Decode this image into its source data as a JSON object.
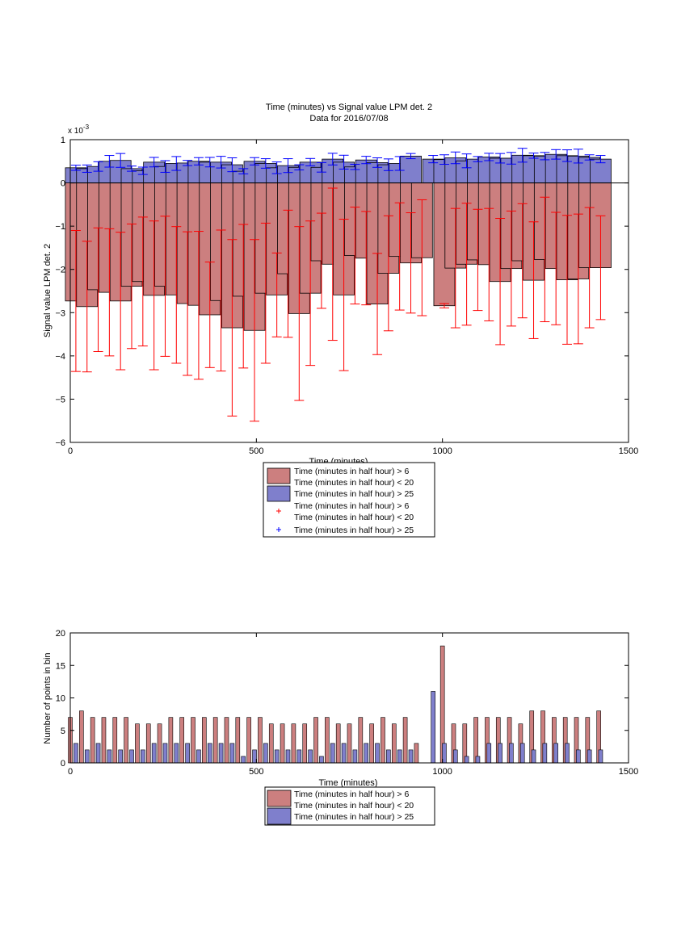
{
  "chart_data": [
    {
      "type": "bar",
      "title_line1": "Time (minutes) vs Signal value LPM det. 2",
      "title_line2": "Data for 2016/07/08",
      "xlabel": "Time (minutes)",
      "ylabel": "Signal value LPM det. 2",
      "exponent_label": "x 10",
      "exponent_power": "-3",
      "xlim": [
        0,
        1500
      ],
      "ylim": [
        -6,
        1
      ],
      "xticks": [
        0,
        500,
        1000,
        1500
      ],
      "yticks": [
        1,
        0,
        -1,
        -2,
        -3,
        -4,
        -5,
        -6
      ],
      "xtick_labels": [
        "0",
        "500",
        "1000",
        "1500"
      ],
      "ytick_labels": [
        "1",
        "0",
        "−1",
        "−2",
        "−3",
        "−4",
        "−5",
        "−6"
      ],
      "grid": false,
      "legend_position": "below",
      "colors": {
        "red_bar": "#cc7f7f",
        "blue_bar": "#7f7fcc",
        "red_err": "#ff0000",
        "blue_err": "#0000ff"
      },
      "legend": [
        {
          "kind": "bar",
          "color": "red",
          "line1": "Time (minutes in half hour) > 6",
          "line2": "Time (minutes in half hour) < 20"
        },
        {
          "kind": "bar",
          "color": "blue",
          "line1": "Time (minutes in half hour) > 25",
          "line2": ""
        },
        {
          "kind": "marker",
          "color": "red",
          "line1": "Time (minutes in half hour) > 6",
          "line2": "Time (minutes in half hour) < 20"
        },
        {
          "kind": "marker",
          "color": "blue",
          "line1": "Time (minutes in half hour) > 25",
          "line2": ""
        }
      ],
      "red_series": {
        "x": [
          15,
          45,
          75,
          105,
          135,
          165,
          195,
          225,
          255,
          285,
          315,
          345,
          375,
          405,
          435,
          465,
          495,
          525,
          555,
          585,
          615,
          645,
          675,
          705,
          735,
          765,
          795,
          825,
          855,
          885,
          915,
          945,
          1005,
          1035,
          1065,
          1095,
          1125,
          1155,
          1185,
          1215,
          1245,
          1275,
          1305,
          1335,
          1365,
          1395,
          1425
        ],
        "values": [
          -2.73,
          -2.86,
          -2.47,
          -2.53,
          -2.73,
          -2.39,
          -2.28,
          -2.6,
          -2.39,
          -2.59,
          -2.79,
          -2.83,
          -3.05,
          -2.72,
          -3.35,
          -2.62,
          -3.41,
          -2.55,
          -2.59,
          -2.1,
          -3.02,
          -2.55,
          -1.8,
          -1.88,
          -2.59,
          -1.68,
          -1.74,
          -2.8,
          -2.09,
          -1.7,
          -1.85,
          -1.73,
          -2.84,
          -1.97,
          -1.88,
          -1.78,
          -1.89,
          -2.28,
          -1.98,
          -1.8,
          -2.25,
          -1.77,
          -1.98,
          -2.24,
          -2.22,
          -1.96,
          -1.96
        ],
        "err": [
          1.63,
          1.51,
          1.43,
          1.47,
          1.59,
          1.44,
          1.49,
          1.72,
          1.62,
          1.58,
          1.66,
          1.71,
          1.22,
          1.63,
          2.04,
          1.66,
          2.1,
          1.62,
          0.97,
          1.47,
          2.01,
          1.67,
          1.1,
          1.76,
          1.75,
          1.12,
          1.08,
          1.17,
          1.33,
          1.24,
          1.16,
          1.34,
          0.05,
          1.38,
          1.41,
          1.17,
          1.3,
          1.46,
          1.33,
          1.32,
          1.35,
          1.44,
          1.3,
          1.49,
          1.5,
          1.39,
          1.2
        ]
      },
      "blue_series": {
        "x": [
          15,
          45,
          75,
          105,
          135,
          165,
          195,
          225,
          255,
          285,
          315,
          345,
          375,
          405,
          435,
          465,
          495,
          525,
          555,
          585,
          615,
          645,
          675,
          705,
          735,
          765,
          795,
          825,
          855,
          885,
          915,
          975,
          1005,
          1035,
          1065,
          1095,
          1125,
          1155,
          1185,
          1215,
          1245,
          1275,
          1305,
          1335,
          1365,
          1395,
          1425
        ],
        "values": [
          0.35,
          0.33,
          0.38,
          0.5,
          0.52,
          0.33,
          0.28,
          0.48,
          0.38,
          0.45,
          0.46,
          0.5,
          0.48,
          0.48,
          0.42,
          0.27,
          0.5,
          0.45,
          0.35,
          0.4,
          0.36,
          0.48,
          0.36,
          0.55,
          0.48,
          0.37,
          0.53,
          0.47,
          0.42,
          0.45,
          0.62,
          0.55,
          0.54,
          0.58,
          0.51,
          0.55,
          0.6,
          0.57,
          0.57,
          0.64,
          0.63,
          0.62,
          0.66,
          0.63,
          0.62,
          0.59,
          0.55
        ]
      }
    },
    {
      "type": "bar",
      "xlabel": "Time (minutes)",
      "ylabel": "Number of points in bin",
      "xlim": [
        0,
        1500
      ],
      "ylim": [
        0,
        20
      ],
      "xticks": [
        0,
        500,
        1000,
        1500
      ],
      "yticks": [
        0,
        5,
        10,
        15,
        20
      ],
      "xtick_labels": [
        "0",
        "500",
        "1000",
        "1500"
      ],
      "ytick_labels": [
        "0",
        "5",
        "10",
        "15",
        "20"
      ],
      "grid": false,
      "legend_position": "below",
      "legend": [
        {
          "kind": "bar",
          "color": "red",
          "line1": "Time (minutes in half hour) > 6",
          "line2": ""
        },
        {
          "kind": "bar",
          "color": "none",
          "line1": "Time (minutes in half hour) < 20",
          "line2": ""
        },
        {
          "kind": "bar",
          "color": "blue",
          "line1": "Time (minutes in half hour) > 25",
          "line2": ""
        }
      ],
      "red_series": {
        "x": [
          0,
          30,
          60,
          90,
          120,
          150,
          180,
          210,
          240,
          270,
          300,
          330,
          360,
          390,
          420,
          450,
          480,
          510,
          540,
          570,
          600,
          630,
          660,
          690,
          720,
          750,
          780,
          810,
          840,
          870,
          900,
          930,
          1000,
          1030,
          1060,
          1090,
          1120,
          1150,
          1180,
          1210,
          1240,
          1270,
          1300,
          1330,
          1360,
          1390,
          1420
        ],
        "values": [
          7,
          8,
          7,
          7,
          7,
          7,
          6,
          6,
          6,
          7,
          7,
          7,
          7,
          7,
          7,
          7,
          7,
          7,
          6,
          6,
          6,
          6,
          7,
          7,
          6,
          6,
          7,
          6,
          7,
          6,
          7,
          3,
          18,
          6,
          6,
          7,
          7,
          7,
          7,
          6,
          8,
          8,
          7,
          7,
          7,
          7,
          8
        ]
      },
      "blue_series": {
        "x": [
          15,
          45,
          75,
          105,
          135,
          165,
          195,
          225,
          255,
          285,
          315,
          345,
          375,
          405,
          435,
          465,
          495,
          525,
          555,
          585,
          615,
          645,
          675,
          705,
          735,
          765,
          795,
          825,
          855,
          885,
          915,
          975,
          1005,
          1035,
          1065,
          1095,
          1125,
          1155,
          1185,
          1215,
          1245,
          1275,
          1305,
          1335,
          1365,
          1395,
          1425
        ],
        "values": [
          3,
          2,
          3,
          2,
          2,
          2,
          2,
          3,
          3,
          3,
          3,
          2,
          3,
          3,
          3,
          1,
          2,
          3,
          2,
          2,
          2,
          2,
          1,
          3,
          3,
          2,
          3,
          3,
          2,
          2,
          2,
          11,
          3,
          2,
          1,
          1,
          3,
          3,
          3,
          3,
          2,
          3,
          3,
          3,
          2,
          2,
          2
        ]
      }
    }
  ]
}
